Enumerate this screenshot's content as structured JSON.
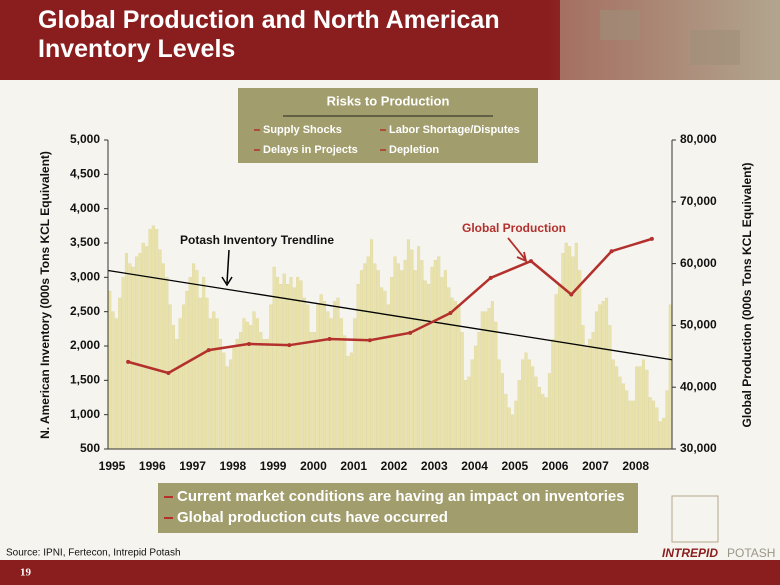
{
  "header": {
    "title": "Global Production and North American Inventory Levels"
  },
  "risks": {
    "title": "Risks to Production",
    "items": [
      "Supply Shocks",
      "Labor Shortage/Disputes",
      "Delays in Projects",
      "Depletion"
    ]
  },
  "bullets": [
    "Current market conditions are having an impact on inventories",
    "Global production cuts have occurred"
  ],
  "source": "Source: IPNI, Fertecon, Intrepid Potash",
  "page_number": "19",
  "logo": {
    "left": "INTREPID",
    "right": "POTASH"
  },
  "chart_data": {
    "type": "bar",
    "y_label": "N. American Inventory (000s Tons KCL Equivalent)",
    "y2_label": "Global Production (000s Tons KCL Equivalent)",
    "categories": [
      "1995",
      "1996",
      "1997",
      "1998",
      "1999",
      "2000",
      "2001",
      "2002",
      "2003",
      "2004",
      "2005",
      "2006",
      "2007",
      "2008"
    ],
    "ylim": [
      500,
      5000
    ],
    "yticks": [
      500,
      {
        "value": 1000,
        "label": "1,000"
      },
      {
        "value": 1500,
        "label": "1,500"
      },
      {
        "value": 2000,
        "label": "2,000"
      },
      {
        "value": 2500,
        "label": "2,500"
      },
      {
        "value": 3000,
        "label": "3,000"
      },
      {
        "value": 3500,
        "label": "3,500"
      },
      {
        "value": 4000,
        "label": "4,000"
      },
      {
        "value": 4500,
        "label": "4,500"
      },
      {
        "value": 5000,
        "label": "5,000"
      }
    ],
    "y2lim": [
      30000,
      80000
    ],
    "y2ticks": [
      {
        "value": 30000,
        "label": "30,000"
      },
      {
        "value": 40000,
        "label": "40,000"
      },
      {
        "value": 50000,
        "label": "50,000"
      },
      {
        "value": 60000,
        "label": "60,000"
      },
      {
        "value": 70000,
        "label": "70,000"
      },
      {
        "value": 80000,
        "label": "80,000"
      }
    ],
    "grid": false,
    "series": [
      {
        "type": "bar",
        "color": "#e9e3ab",
        "values": [
          [
            2800,
            2500,
            2400,
            2700,
            3000,
            3350,
            3200,
            3150,
            3300,
            3350,
            3500,
            3450
          ],
          [
            3700,
            3750,
            3700,
            3400,
            3200,
            3000,
            2600,
            2300,
            2100,
            2400,
            2600,
            2800
          ],
          [
            3000,
            3200,
            3100,
            2700,
            3000,
            2700,
            2400,
            2500,
            2400,
            2100,
            1900,
            1700
          ],
          [
            1800,
            2000,
            2100,
            2200,
            2400,
            2350,
            2300,
            2500,
            2400,
            2200,
            2100,
            2100
          ],
          [
            2600,
            3150,
            3000,
            2900,
            3050,
            2900,
            3000,
            2850,
            3000,
            2950,
            2700,
            2600
          ],
          [
            2200,
            2200,
            2600,
            2750,
            2650,
            2500,
            2400,
            2650,
            2700,
            2400,
            2150,
            1850
          ],
          [
            1900,
            2400,
            2900,
            3100,
            3200,
            3300,
            3550,
            3200,
            3100,
            2850,
            2800,
            2600
          ],
          [
            3000,
            3300,
            3200,
            3100,
            3250,
            3550,
            3400,
            3100,
            3450,
            3250,
            2950,
            2900
          ],
          [
            3150,
            3250,
            3300,
            3000,
            3100,
            2850,
            2700,
            2650,
            2600,
            2200,
            1500,
            1550
          ],
          [
            1800,
            2000,
            2200,
            2500,
            2500,
            2550,
            2650,
            2350,
            1800,
            1600,
            1300,
            1100
          ],
          [
            1000,
            1200,
            1500,
            1800,
            1900,
            1800,
            1700,
            1550,
            1400,
            1300,
            1250,
            1600
          ],
          [
            2100,
            2750,
            2900,
            3350,
            3500,
            3450,
            3300,
            3500,
            3100,
            2300,
            2000,
            2100
          ],
          [
            2200,
            2500,
            2600,
            2650,
            2700,
            2300,
            1800,
            1700,
            1550,
            1450,
            1350,
            1200
          ],
          [
            1200,
            1700,
            1700,
            1800,
            1650,
            1250,
            1200,
            1100,
            900,
            950,
            1350,
            2600
          ]
        ]
      },
      {
        "name": "Global Production",
        "type": "line",
        "axis": "y2",
        "color": "#b3302c",
        "values": [
          44100,
          42300,
          46000,
          47000,
          46800,
          47800,
          47600,
          48800,
          52000,
          57700,
          60400,
          55000,
          62000,
          64000
        ]
      }
    ],
    "trendline": {
      "label": "Potash Inventory Trendline",
      "color": "#000000",
      "values": [
        3100,
        1800
      ]
    }
  }
}
